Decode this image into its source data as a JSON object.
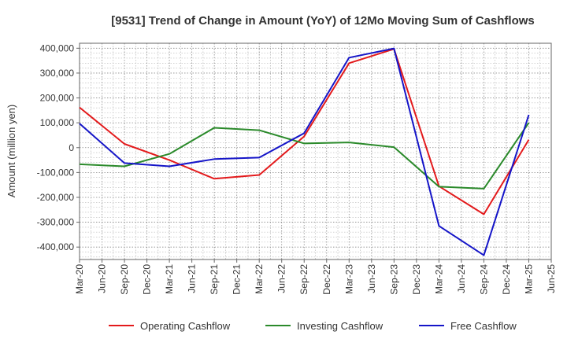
{
  "chart_data": {
    "type": "line",
    "title": "[9531]  Trend of Change in Amount (YoY) of 12Mo Moving Sum of Cashflows",
    "xlabel": "",
    "ylabel": "Amount (million yen)",
    "ylim": [
      -450000,
      420000
    ],
    "yticks": [
      400000,
      300000,
      200000,
      100000,
      0,
      -100000,
      -200000,
      -300000,
      -400000
    ],
    "ytick_labels": [
      "400,000",
      "300,000",
      "200,000",
      "100,000",
      "0",
      "-100,000",
      "-200,000",
      "-300,000",
      "-400,000"
    ],
    "x_ticks": [
      "Mar-20",
      "Jun-20",
      "Sep-20",
      "Dec-20",
      "Mar-21",
      "Jun-21",
      "Sep-21",
      "Dec-21",
      "Mar-22",
      "Jun-22",
      "Sep-22",
      "Dec-22",
      "Mar-23",
      "Jun-23",
      "Sep-23",
      "Dec-23",
      "Mar-24",
      "Jun-24",
      "Sep-24",
      "Dec-24",
      "Mar-25",
      "Jun-25"
    ],
    "x": [
      "Mar-20",
      "Sep-20",
      "Mar-21",
      "Sep-21",
      "Mar-22",
      "Sep-22",
      "Mar-23",
      "Sep-23",
      "Mar-24",
      "Sep-24",
      "Mar-25"
    ],
    "grid": true,
    "legend_position": "bottom",
    "series": [
      {
        "name": "Operating Cashflow",
        "color": "#e31a1c",
        "values": [
          162000,
          15000,
          -50000,
          -125000,
          -110000,
          45000,
          340000,
          397000,
          -155000,
          -268000,
          32000
        ]
      },
      {
        "name": "Investing Cashflow",
        "color": "#2b8a2b",
        "values": [
          -67000,
          -75000,
          -25000,
          80000,
          70000,
          17000,
          21000,
          2000,
          -157000,
          -165000,
          100000
        ]
      },
      {
        "name": "Free Cashflow",
        "color": "#1515c8",
        "values": [
          97000,
          -62000,
          -75000,
          -46000,
          -40000,
          58000,
          362000,
          399000,
          -315000,
          -433000,
          132000
        ]
      }
    ]
  }
}
